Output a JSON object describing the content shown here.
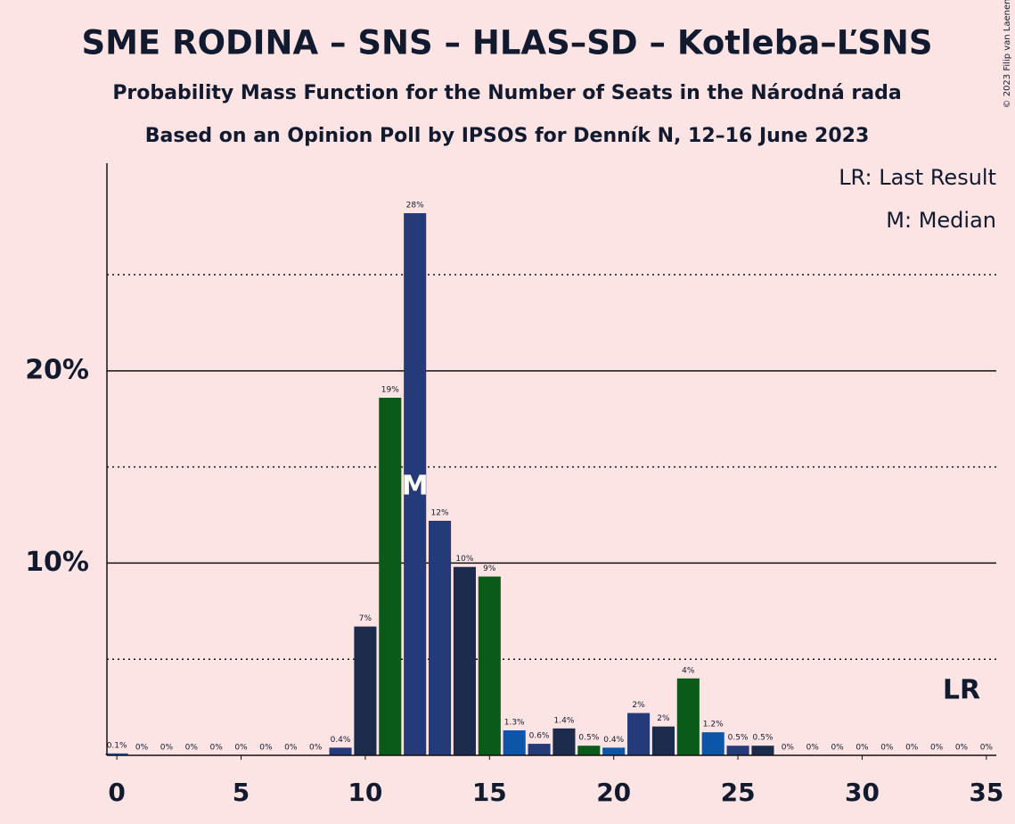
{
  "chart_data": {
    "type": "bar",
    "title": "SME RODINA – SNS – HLAS–SD – Kotleba–ĽSNS",
    "subtitle": "Probability Mass Function for the Number of Seats in the Národná rada",
    "subtitle2": "Based on an Opinion Poll by IPSOS for Denník N, 12–16 June 2023",
    "copyright": "© 2023 Filip van Laenen",
    "legend": [
      "LR: Last Result",
      "M: Median"
    ],
    "median": {
      "x": 12,
      "label": "M"
    },
    "last_result": {
      "x": 34,
      "label": "LR"
    },
    "x": [
      0,
      1,
      2,
      3,
      4,
      5,
      6,
      7,
      8,
      9,
      10,
      11,
      12,
      13,
      14,
      15,
      16,
      17,
      18,
      19,
      20,
      21,
      22,
      23,
      24,
      25,
      26,
      27,
      28,
      29,
      30,
      31,
      32,
      33,
      34,
      35
    ],
    "values": [
      0.1,
      0,
      0,
      0,
      0,
      0,
      0,
      0,
      0,
      0.4,
      6.7,
      18.6,
      28.2,
      12.2,
      9.8,
      9.3,
      1.3,
      0.6,
      1.4,
      0.5,
      0.4,
      2.2,
      1.5,
      4.0,
      1.2,
      0.5,
      0.5,
      0,
      0,
      0,
      0,
      0,
      0,
      0,
      0,
      0
    ],
    "value_labels": [
      "0.1%",
      "0%",
      "0%",
      "0%",
      "0%",
      "0%",
      "0%",
      "0%",
      "0%",
      "0.4%",
      "7%",
      "19%",
      "28%",
      "12%",
      "10%",
      "9%",
      "1.3%",
      "0.6%",
      "1.4%",
      "0.5%",
      "0.4%",
      "2%",
      "2%",
      "4%",
      "1.2%",
      "0.5%",
      "0.5%",
      "0%",
      "0%",
      "0%",
      "0%",
      "0%",
      "0%",
      "0%",
      "0%",
      "0%"
    ],
    "colors": [
      "#0d55a6",
      "#253a78",
      "#1c2b4c",
      "#0a5a1a",
      "#0d55a6",
      "#253a78",
      "#1c2b4c",
      "#0a5a1a",
      "#0d55a6",
      "#253a78",
      "#1c2b4c",
      "#0a5a1a",
      "#253a78",
      "#253a78",
      "#1c2b4c",
      "#0a5a1a",
      "#0d55a6",
      "#253a78",
      "#1c2b4c",
      "#0a5a1a",
      "#0d55a6",
      "#253a78",
      "#1c2b4c",
      "#0a5a1a",
      "#0d55a6",
      "#253a78",
      "#1c2b4c",
      "#0a5a1a",
      "#0d55a6",
      "#253a78",
      "#1c2b4c",
      "#0a5a1a",
      "#0d55a6",
      "#253a78",
      "#1c2b4c",
      "#0a5a1a"
    ],
    "xlim": [
      -0.4,
      35.4
    ],
    "xticks": [
      0,
      5,
      10,
      15,
      20,
      25,
      30,
      35
    ],
    "ylim": [
      0,
      30.8
    ],
    "yticks": [
      {
        "value": 10,
        "label": "10%"
      },
      {
        "value": 20,
        "label": "20%"
      }
    ],
    "minor_yticks": [
      5,
      15,
      25
    ],
    "grid": true
  }
}
